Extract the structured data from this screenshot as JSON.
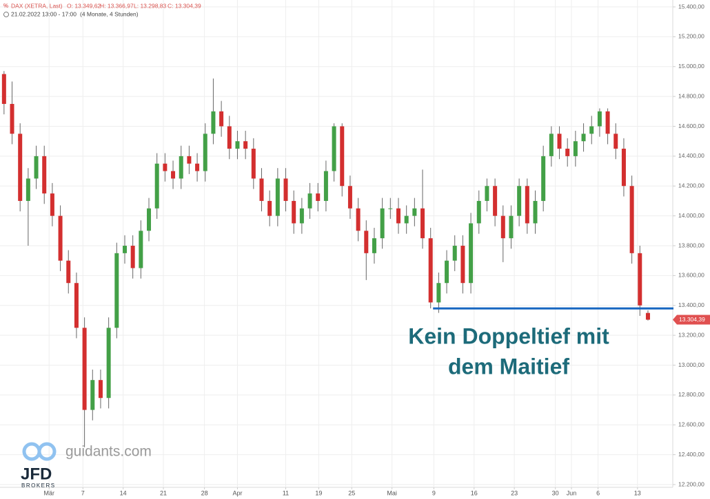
{
  "chart_data": {
    "type": "candlestick",
    "header": {
      "symbol": "DAX (XETRA, Last)",
      "ohlc": [
        "O: 13.349,62",
        "H: 13.366,97",
        "L: 13.298,83",
        "C: 13.304,39"
      ],
      "period": "21.02.2022 13:00 - 17:00",
      "range": "(4 Monate, 4 Stunden)"
    },
    "x": [
      0,
      1,
      2,
      3,
      4,
      5,
      6,
      7,
      8,
      9,
      10,
      11,
      12,
      13,
      14,
      15,
      16,
      17,
      18,
      19,
      20,
      21,
      22,
      23,
      24,
      25,
      26,
      27,
      28,
      29,
      30,
      31,
      32,
      33,
      34,
      35,
      36,
      37,
      38,
      39,
      40,
      41,
      42,
      43,
      44,
      45,
      46,
      47,
      48,
      49,
      50,
      51,
      52,
      53,
      54,
      55,
      56,
      57,
      58,
      59,
      60,
      61,
      62,
      63,
      64,
      65,
      66,
      67,
      68,
      69,
      70,
      71,
      72,
      73,
      74,
      75,
      76,
      77,
      78,
      79,
      80
    ],
    "open": [
      14950,
      14750,
      14550,
      14100,
      14250,
      14400,
      14150,
      14000,
      13700,
      13550,
      13250,
      12700,
      12900,
      12780,
      13250,
      13750,
      13800,
      13650,
      13900,
      14050,
      14350,
      14300,
      14250,
      14400,
      14350,
      14300,
      14550,
      14700,
      14600,
      14450,
      14500,
      14450,
      14250,
      14100,
      14000,
      14250,
      14100,
      13950,
      14050,
      14150,
      14100,
      14300,
      14600,
      14200,
      14050,
      13900,
      13750,
      13850,
      14050,
      14050,
      13950,
      14000,
      14050,
      13850,
      13420,
      13550,
      13700,
      13800,
      13550,
      13950,
      14100,
      14200,
      14000,
      13850,
      14000,
      14200,
      13950,
      14100,
      14400,
      14550,
      14450,
      14400,
      14500,
      14550,
      14600,
      14700,
      14550,
      14450,
      14200,
      13750,
      13349.62
    ],
    "high": [
      14970,
      14900,
      14620,
      14320,
      14470,
      14470,
      14220,
      14070,
      13770,
      13620,
      13320,
      12970,
      12970,
      13320,
      13820,
      13870,
      13870,
      13970,
      14120,
      14420,
      14420,
      14370,
      14470,
      14470,
      14420,
      14620,
      14920,
      14770,
      14670,
      14570,
      14570,
      14520,
      14320,
      14170,
      14320,
      14320,
      14170,
      14120,
      14220,
      14220,
      14370,
      14620,
      14620,
      14270,
      14120,
      13970,
      13920,
      14120,
      14120,
      14120,
      14070,
      14120,
      14310,
      13920,
      13620,
      13770,
      13870,
      13870,
      14020,
      14170,
      14250,
      14250,
      14070,
      14070,
      14250,
      14250,
      14170,
      14470,
      14600,
      14600,
      14520,
      14570,
      14620,
      14670,
      14720,
      14720,
      14620,
      14520,
      14270,
      13800,
      13366.97
    ],
    "low": [
      14680,
      14480,
      14030,
      13800,
      14180,
      14080,
      13930,
      13630,
      13480,
      13180,
      12450,
      12630,
      12710,
      12710,
      13180,
      13680,
      13580,
      13580,
      13830,
      13980,
      14230,
      14180,
      14180,
      14280,
      14230,
      14230,
      14480,
      14530,
      14380,
      14380,
      14380,
      14180,
      14030,
      13930,
      13930,
      14030,
      13880,
      13880,
      13980,
      14030,
      14030,
      14230,
      14130,
      13980,
      13830,
      13570,
      13680,
      13780,
      13980,
      13880,
      13880,
      13930,
      13780,
      13380,
      13350,
      13480,
      13630,
      13480,
      13480,
      13880,
      14030,
      13930,
      13690,
      13780,
      13930,
      13880,
      13880,
      14030,
      14330,
      14380,
      14330,
      14330,
      14430,
      14480,
      14530,
      14480,
      14380,
      14130,
      13680,
      13330,
      13298.83
    ],
    "close": [
      14750,
      14550,
      14100,
      14250,
      14400,
      14150,
      14000,
      13700,
      13550,
      13250,
      12700,
      12900,
      12780,
      13250,
      13750,
      13800,
      13650,
      13900,
      14050,
      14350,
      14300,
      14250,
      14400,
      14350,
      14300,
      14550,
      14700,
      14600,
      14450,
      14500,
      14450,
      14250,
      14100,
      14000,
      14250,
      14100,
      13950,
      14050,
      14150,
      14100,
      14300,
      14600,
      14200,
      14050,
      13900,
      13750,
      13850,
      14050,
      14050,
      13950,
      14000,
      14050,
      13850,
      13420,
      13550,
      13700,
      13800,
      13550,
      13950,
      14100,
      14200,
      14000,
      13850,
      14000,
      14200,
      13950,
      14100,
      14400,
      14550,
      14450,
      14400,
      14500,
      14550,
      14600,
      14700,
      14550,
      14450,
      14200,
      13750,
      13400,
      13304.39
    ],
    "up_color": "#43a047",
    "down_color": "#d32f2f",
    "xlim": [
      -0.5,
      83
    ],
    "ylim": [
      12200,
      15400
    ],
    "xticks": [
      {
        "value": 5.6,
        "label": "Mär"
      },
      {
        "value": 9.8,
        "label": "7"
      },
      {
        "value": 14.8,
        "label": "14"
      },
      {
        "value": 19.8,
        "label": "21"
      },
      {
        "value": 24.9,
        "label": "28"
      },
      {
        "value": 29,
        "label": "Apr"
      },
      {
        "value": 35,
        "label": "11"
      },
      {
        "value": 39.1,
        "label": "19"
      },
      {
        "value": 43.2,
        "label": "25"
      },
      {
        "value": 48.2,
        "label": "Mai"
      },
      {
        "value": 53.4,
        "label": "9"
      },
      {
        "value": 58.4,
        "label": "16"
      },
      {
        "value": 63.4,
        "label": "23"
      },
      {
        "value": 68.5,
        "label": "30"
      },
      {
        "value": 70.5,
        "label": "Jun"
      },
      {
        "value": 73.8,
        "label": "6"
      },
      {
        "value": 78.7,
        "label": "13"
      }
    ],
    "yticks": [
      {
        "value": 12200,
        "label": "12.200,00"
      },
      {
        "value": 12400,
        "label": "12.400,00"
      },
      {
        "value": 12600,
        "label": "12.600,00"
      },
      {
        "value": 12800,
        "label": "12.800,00"
      },
      {
        "value": 13000,
        "label": "13.000,00"
      },
      {
        "value": 13200,
        "label": "13.200,00"
      },
      {
        "value": 13400,
        "label": "13.400,00"
      },
      {
        "value": 13600,
        "label": "13.600,00"
      },
      {
        "value": 13800,
        "label": "13.800,00"
      },
      {
        "value": 14000,
        "label": "14.000,00"
      },
      {
        "value": 14200,
        "label": "14.200,00"
      },
      {
        "value": 14400,
        "label": "14.400,00"
      },
      {
        "value": 14600,
        "label": "14.600,00"
      },
      {
        "value": 14800,
        "label": "14.800,00"
      },
      {
        "value": 15000,
        "label": "15.000,00"
      },
      {
        "value": 15200,
        "label": "15.200,00"
      },
      {
        "value": 15400,
        "label": "15.400,00"
      }
    ],
    "grid": true,
    "last_price": {
      "value": 13304.39,
      "label": "13.304,39"
    },
    "support_line": {
      "value": 13380,
      "x_start": 53.3,
      "color": "#1565c0"
    },
    "annotation": [
      "Kein Doppeltief mit",
      "dem Maitief"
    ],
    "watermark": {
      "site": "guidants.com",
      "brand": "JFD",
      "sub": "BROKERS"
    }
  }
}
